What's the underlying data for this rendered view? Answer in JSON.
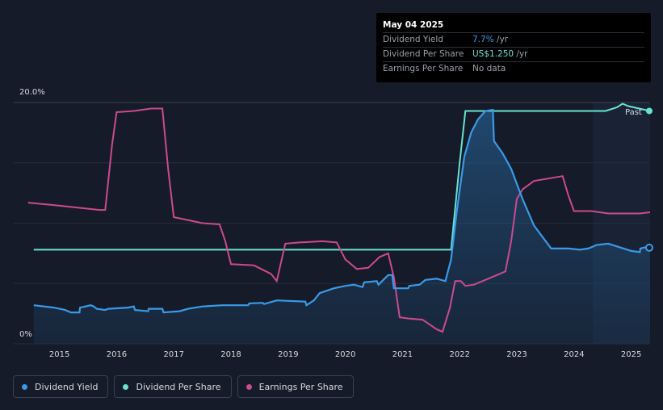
{
  "tooltip": {
    "date": "May 04 2025",
    "rows": [
      {
        "label": "Dividend Yield",
        "value": "7.7%",
        "unit": " /yr"
      },
      {
        "label": "Dividend Per Share",
        "value": "US$1.250",
        "unit": " /yr"
      },
      {
        "label": "Earnings Per Share",
        "value": "No data",
        "unit": ""
      }
    ]
  },
  "legend": [
    {
      "label": "Dividend Yield",
      "color": "#3a9ae8"
    },
    {
      "label": "Dividend Per Share",
      "color": "#68e3d1"
    },
    {
      "label": "Earnings Per Share",
      "color": "#cc4a8e"
    }
  ],
  "past_label": "Past",
  "chart_data": {
    "type": "line",
    "x_ticks": [
      "2015",
      "2016",
      "2017",
      "2018",
      "2019",
      "2020",
      "2021",
      "2022",
      "2023",
      "2024",
      "2025"
    ],
    "y_tick_labels": [
      "20.0%",
      "0%"
    ],
    "ylim": [
      0,
      20
    ],
    "xlim": [
      2014.45,
      2025.33
    ],
    "grid": true,
    "past_region_start": 2024.33,
    "series": [
      {
        "name": "Dividend Yield",
        "color": "#3a9ae8",
        "fill": true,
        "points": [
          [
            2014.55,
            3.2
          ],
          [
            2014.9,
            3.0
          ],
          [
            2015.1,
            2.8
          ],
          [
            2015.2,
            2.6
          ],
          [
            2015.35,
            2.6
          ],
          [
            2015.36,
            3.0
          ],
          [
            2015.55,
            3.2
          ],
          [
            2015.6,
            3.1
          ],
          [
            2015.65,
            2.9
          ],
          [
            2015.8,
            2.8
          ],
          [
            2015.85,
            2.9
          ],
          [
            2016.2,
            3.0
          ],
          [
            2016.3,
            3.1
          ],
          [
            2016.32,
            2.8
          ],
          [
            2016.55,
            2.7
          ],
          [
            2016.56,
            2.9
          ],
          [
            2016.8,
            2.9
          ],
          [
            2016.82,
            2.6
          ],
          [
            2017.1,
            2.7
          ],
          [
            2017.25,
            2.9
          ],
          [
            2017.5,
            3.1
          ],
          [
            2017.85,
            3.2
          ],
          [
            2018.3,
            3.2
          ],
          [
            2018.32,
            3.35
          ],
          [
            2018.55,
            3.4
          ],
          [
            2018.58,
            3.3
          ],
          [
            2018.8,
            3.6
          ],
          [
            2019.3,
            3.5
          ],
          [
            2019.32,
            3.2
          ],
          [
            2019.45,
            3.6
          ],
          [
            2019.55,
            4.2
          ],
          [
            2019.8,
            4.6
          ],
          [
            2020.0,
            4.8
          ],
          [
            2020.15,
            4.9
          ],
          [
            2020.3,
            4.7
          ],
          [
            2020.33,
            5.1
          ],
          [
            2020.55,
            5.2
          ],
          [
            2020.58,
            4.9
          ],
          [
            2020.75,
            5.7
          ],
          [
            2020.82,
            5.7
          ],
          [
            2020.85,
            4.6
          ],
          [
            2021.1,
            4.6
          ],
          [
            2021.12,
            4.8
          ],
          [
            2021.3,
            4.9
          ],
          [
            2021.4,
            5.3
          ],
          [
            2021.6,
            5.4
          ],
          [
            2021.75,
            5.2
          ],
          [
            2021.85,
            7.0
          ],
          [
            2021.95,
            11.0
          ],
          [
            2022.08,
            15.5
          ],
          [
            2022.2,
            17.5
          ],
          [
            2022.32,
            18.6
          ],
          [
            2022.45,
            19.3
          ],
          [
            2022.58,
            19.4
          ],
          [
            2022.6,
            16.8
          ],
          [
            2022.75,
            15.8
          ],
          [
            2022.9,
            14.5
          ],
          [
            2023.1,
            12.0
          ],
          [
            2023.3,
            9.8
          ],
          [
            2023.6,
            7.9
          ],
          [
            2023.9,
            7.9
          ],
          [
            2024.1,
            7.8
          ],
          [
            2024.25,
            7.9
          ],
          [
            2024.4,
            8.2
          ],
          [
            2024.6,
            8.3
          ],
          [
            2024.8,
            8.0
          ],
          [
            2025.0,
            7.7
          ],
          [
            2025.15,
            7.6
          ],
          [
            2025.16,
            7.9
          ],
          [
            2025.33,
            8.1
          ]
        ]
      },
      {
        "name": "Dividend Per Share",
        "color": "#68e3d1",
        "fill": false,
        "points": [
          [
            2014.55,
            7.8
          ],
          [
            2021.85,
            7.8
          ],
          [
            2022.0,
            15.0
          ],
          [
            2022.1,
            19.3
          ],
          [
            2024.55,
            19.3
          ],
          [
            2024.75,
            19.6
          ],
          [
            2024.85,
            19.9
          ],
          [
            2024.95,
            19.7
          ],
          [
            2025.33,
            19.3
          ]
        ]
      },
      {
        "name": "Earnings Per Share",
        "color": "#cc4a8e",
        "fill": false,
        "points": [
          [
            2014.45,
            11.7
          ],
          [
            2014.9,
            11.5
          ],
          [
            2015.3,
            11.3
          ],
          [
            2015.7,
            11.1
          ],
          [
            2015.8,
            11.1
          ],
          [
            2015.92,
            16.5
          ],
          [
            2016.0,
            19.2
          ],
          [
            2016.3,
            19.3
          ],
          [
            2016.6,
            19.5
          ],
          [
            2016.8,
            19.5
          ],
          [
            2016.9,
            14.5
          ],
          [
            2017.0,
            10.5
          ],
          [
            2017.2,
            10.3
          ],
          [
            2017.5,
            10.0
          ],
          [
            2017.8,
            9.9
          ],
          [
            2017.9,
            8.5
          ],
          [
            2018.0,
            6.6
          ],
          [
            2018.4,
            6.5
          ],
          [
            2018.7,
            5.8
          ],
          [
            2018.8,
            5.2
          ],
          [
            2018.95,
            8.3
          ],
          [
            2019.2,
            8.4
          ],
          [
            2019.6,
            8.5
          ],
          [
            2019.85,
            8.4
          ],
          [
            2020.0,
            7.0
          ],
          [
            2020.2,
            6.2
          ],
          [
            2020.4,
            6.3
          ],
          [
            2020.6,
            7.2
          ],
          [
            2020.75,
            7.5
          ],
          [
            2020.85,
            5.5
          ],
          [
            2020.95,
            2.2
          ],
          [
            2021.1,
            2.1
          ],
          [
            2021.35,
            2.0
          ],
          [
            2021.6,
            1.2
          ],
          [
            2021.7,
            1.0
          ],
          [
            2021.83,
            3.0
          ],
          [
            2021.92,
            5.2
          ],
          [
            2022.02,
            5.2
          ],
          [
            2022.1,
            4.8
          ],
          [
            2022.25,
            4.9
          ],
          [
            2022.45,
            5.3
          ],
          [
            2022.65,
            5.7
          ],
          [
            2022.8,
            6.0
          ],
          [
            2022.9,
            8.5
          ],
          [
            2023.0,
            12.0
          ],
          [
            2023.1,
            12.8
          ],
          [
            2023.3,
            13.5
          ],
          [
            2023.55,
            13.7
          ],
          [
            2023.8,
            13.9
          ],
          [
            2023.9,
            12.3
          ],
          [
            2024.0,
            11.0
          ],
          [
            2024.3,
            11.0
          ],
          [
            2024.6,
            10.8
          ],
          [
            2024.9,
            10.8
          ],
          [
            2025.15,
            10.8
          ],
          [
            2025.33,
            10.9
          ]
        ]
      }
    ]
  }
}
